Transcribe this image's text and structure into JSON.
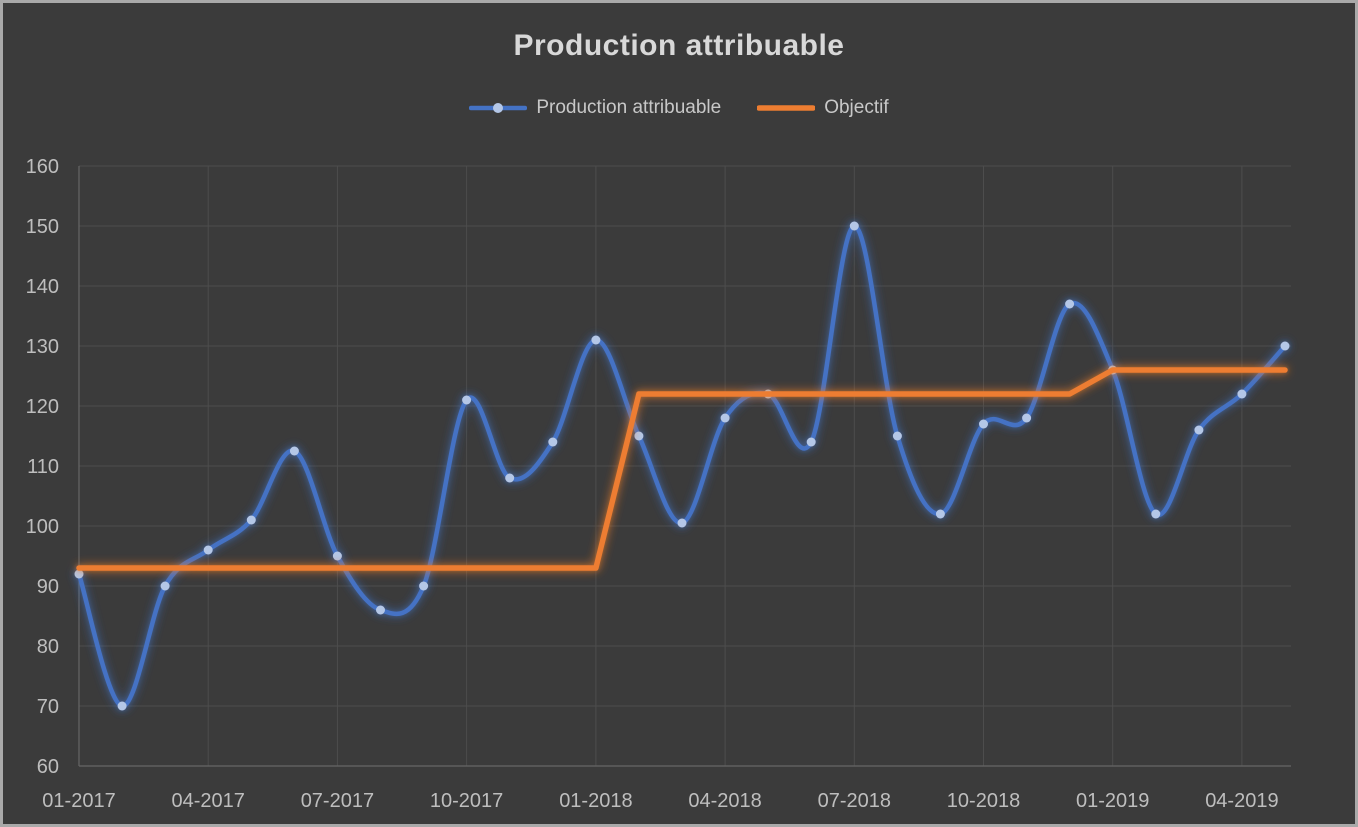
{
  "window": {
    "frame_color": "#a9a9a9",
    "background": "#3b3b3b"
  },
  "chart": {
    "title": "Production attribuable",
    "legend": [
      {
        "label": "Production attribuable",
        "color": "#4472c4",
        "marker_color": "#b4c7e7",
        "has_marker": true
      },
      {
        "label": "Objectif",
        "color": "#ed7d31",
        "has_marker": false
      }
    ]
  },
  "colors": {
    "background": "#3b3b3b",
    "gridline": "#4d4d4d",
    "axis_line": "#666666",
    "tick_label": "#bebebe",
    "title_text": "#d8d8d8",
    "legend_text": "#c8c8c8",
    "frame": "#a9a9a9"
  },
  "chart_data": {
    "type": "line",
    "title": "Production attribuable",
    "x": [
      "01-2017",
      "02-2017",
      "03-2017",
      "04-2017",
      "05-2017",
      "06-2017",
      "07-2017",
      "08-2017",
      "09-2017",
      "10-2017",
      "11-2017",
      "12-2017",
      "01-2018",
      "02-2018",
      "03-2018",
      "04-2018",
      "05-2018",
      "06-2018",
      "07-2018",
      "08-2018",
      "09-2018",
      "10-2018",
      "11-2018",
      "12-2018",
      "01-2019",
      "02-2019",
      "03-2019",
      "04-2019",
      "05-2019"
    ],
    "x_tick_labels": [
      "01-2017",
      "04-2017",
      "07-2017",
      "10-2017",
      "01-2018",
      "04-2018",
      "07-2018",
      "10-2018",
      "01-2019",
      "04-2019"
    ],
    "x_tick_interval": 3,
    "series": [
      {
        "name": "Production attribuable",
        "color": "#4472c4",
        "marker_color": "#b4c7e7",
        "smooth": true,
        "markers": true,
        "glow": true,
        "values": [
          92,
          70,
          90,
          96,
          101,
          112.5,
          95,
          86,
          90,
          121,
          108,
          114,
          131,
          115,
          100.5,
          118,
          122,
          114,
          150,
          115,
          102,
          117,
          118,
          137,
          126,
          102,
          116,
          122,
          130
        ]
      },
      {
        "name": "Objectif",
        "color": "#ed7d31",
        "smooth": false,
        "markers": false,
        "glow": true,
        "values": [
          93,
          93,
          93,
          93,
          93,
          93,
          93,
          93,
          93,
          93,
          93,
          93,
          93,
          122,
          122,
          122,
          122,
          122,
          122,
          122,
          122,
          122,
          122,
          122,
          126,
          126,
          126,
          126,
          126
        ]
      }
    ],
    "xlabel": "",
    "ylabel": "",
    "ylim": [
      60,
      160
    ],
    "y_tick_step": 10,
    "y_tick_labels": [
      "60",
      "70",
      "80",
      "90",
      "100",
      "110",
      "120",
      "130",
      "140",
      "150",
      "160"
    ],
    "grid": true,
    "legend_position": "top"
  }
}
